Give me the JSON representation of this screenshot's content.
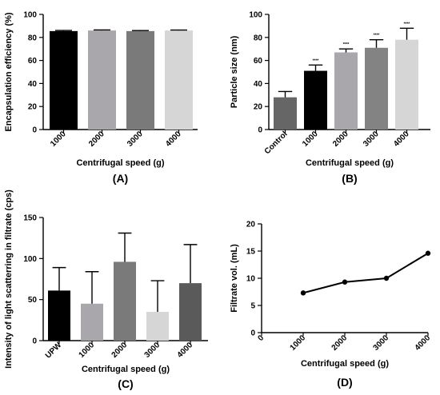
{
  "chart_data": [
    {
      "panel": "(A)",
      "type": "bar",
      "categories": [
        "1000",
        "2000",
        "3000",
        "4000"
      ],
      "values": [
        85.5,
        86,
        85.5,
        86
      ],
      "errors": [
        0.6,
        0.5,
        0.5,
        0.4
      ],
      "colors": [
        "#000000",
        "#a9a7ab",
        "#7a7a7a",
        "#d6d6d6"
      ],
      "xlabel": "Centrifugal speed (g)",
      "ylabel": "Encapsulation efficiency (%)",
      "ylim": [
        0,
        100
      ],
      "yticks": [
        "0",
        "20",
        "40",
        "60",
        "80",
        "100"
      ],
      "grid": false
    },
    {
      "panel": "(B)",
      "type": "bar",
      "categories": [
        "Control",
        "1000",
        "2000",
        "3000",
        "4000"
      ],
      "values": [
        28,
        51,
        67,
        71,
        78
      ],
      "errors": [
        5,
        5,
        3,
        7,
        10
      ],
      "colors": [
        "#666666",
        "#000000",
        "#a9a7ab",
        "#838383",
        "#d6d6d6"
      ],
      "significance": [
        "",
        "****",
        "****",
        "****",
        "****"
      ],
      "xlabel": "Centrifugal speed (g)",
      "ylabel": "Particle size (nm)",
      "ylim": [
        0,
        100
      ],
      "yticks": [
        "0",
        "20",
        "40",
        "60",
        "80",
        "100"
      ],
      "grid": false
    },
    {
      "panel": "(C)",
      "type": "bar",
      "categories": [
        "UPW",
        "1000",
        "2000",
        "3000",
        "4000"
      ],
      "values": [
        61,
        45,
        96,
        35,
        70
      ],
      "errors": [
        28,
        39,
        35,
        38,
        47
      ],
      "colors": [
        "#000000",
        "#a9a7ab",
        "#7a7a7a",
        "#d6d6d6",
        "#5a5a5a"
      ],
      "xlabel": "Centrifugal speed (g)",
      "ylabel": "Intensity of light scatterring in filtrate (cps)",
      "ylim": [
        0,
        150
      ],
      "yticks": [
        "0",
        "50",
        "100",
        "150"
      ],
      "grid": false
    },
    {
      "panel": "(D)",
      "type": "line",
      "x": [
        1000,
        2000,
        3000,
        4000
      ],
      "y": [
        7.3,
        9.3,
        10.0,
        14.6
      ],
      "xlabel": "Centrifugal speed (g)",
      "ylabel": "Filtrate vol. (mL)",
      "xlim": [
        0,
        4000
      ],
      "ylim": [
        0,
        20
      ],
      "xticks": [
        "0",
        "1000",
        "2000",
        "3000",
        "4000"
      ],
      "yticks": [
        "0",
        "5",
        "10",
        "15",
        "20"
      ],
      "grid": false
    }
  ]
}
